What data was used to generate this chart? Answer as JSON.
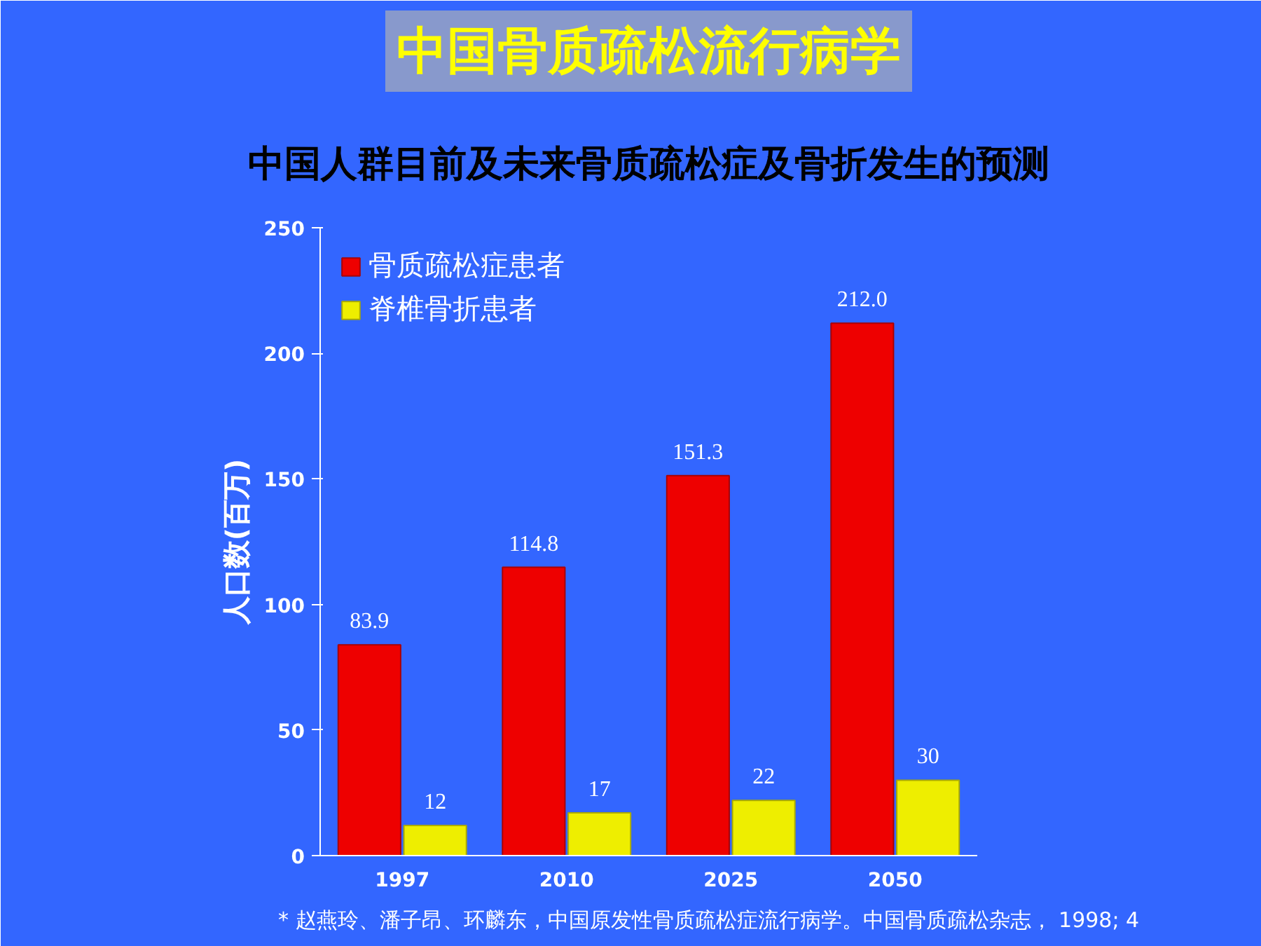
{
  "chart_data": {
    "type": "bar",
    "title": "中国骨质疏松流行病学",
    "subtitle": "中国人群目前及未来骨质疏松症及骨折发生的预测",
    "ylabel": "人口数(百万)",
    "categories": [
      "1997",
      "2010",
      "2025",
      "2050"
    ],
    "series": [
      {
        "name": "骨质疏松症患者",
        "color": "#ee0000",
        "values": [
          83.9,
          114.8,
          151.3,
          212.0
        ],
        "value_labels": [
          "83.9",
          "114.8",
          "151.3",
          "212.0"
        ]
      },
      {
        "name": "脊椎骨折患者",
        "color": "#eeee00",
        "values": [
          12,
          17,
          22,
          30
        ],
        "value_labels": [
          "12",
          "17",
          "22",
          "30"
        ]
      }
    ],
    "ylim": [
      0,
      250
    ],
    "yticks": [
      0,
      50,
      100,
      150,
      200,
      250
    ],
    "grid": false,
    "legend": "top left",
    "annotations": [
      "* 赵燕玲、潘子昂、环麟东，中国原发性骨质疏松症流行病学。中国骨质疏松杂志， 1998; 4"
    ]
  }
}
